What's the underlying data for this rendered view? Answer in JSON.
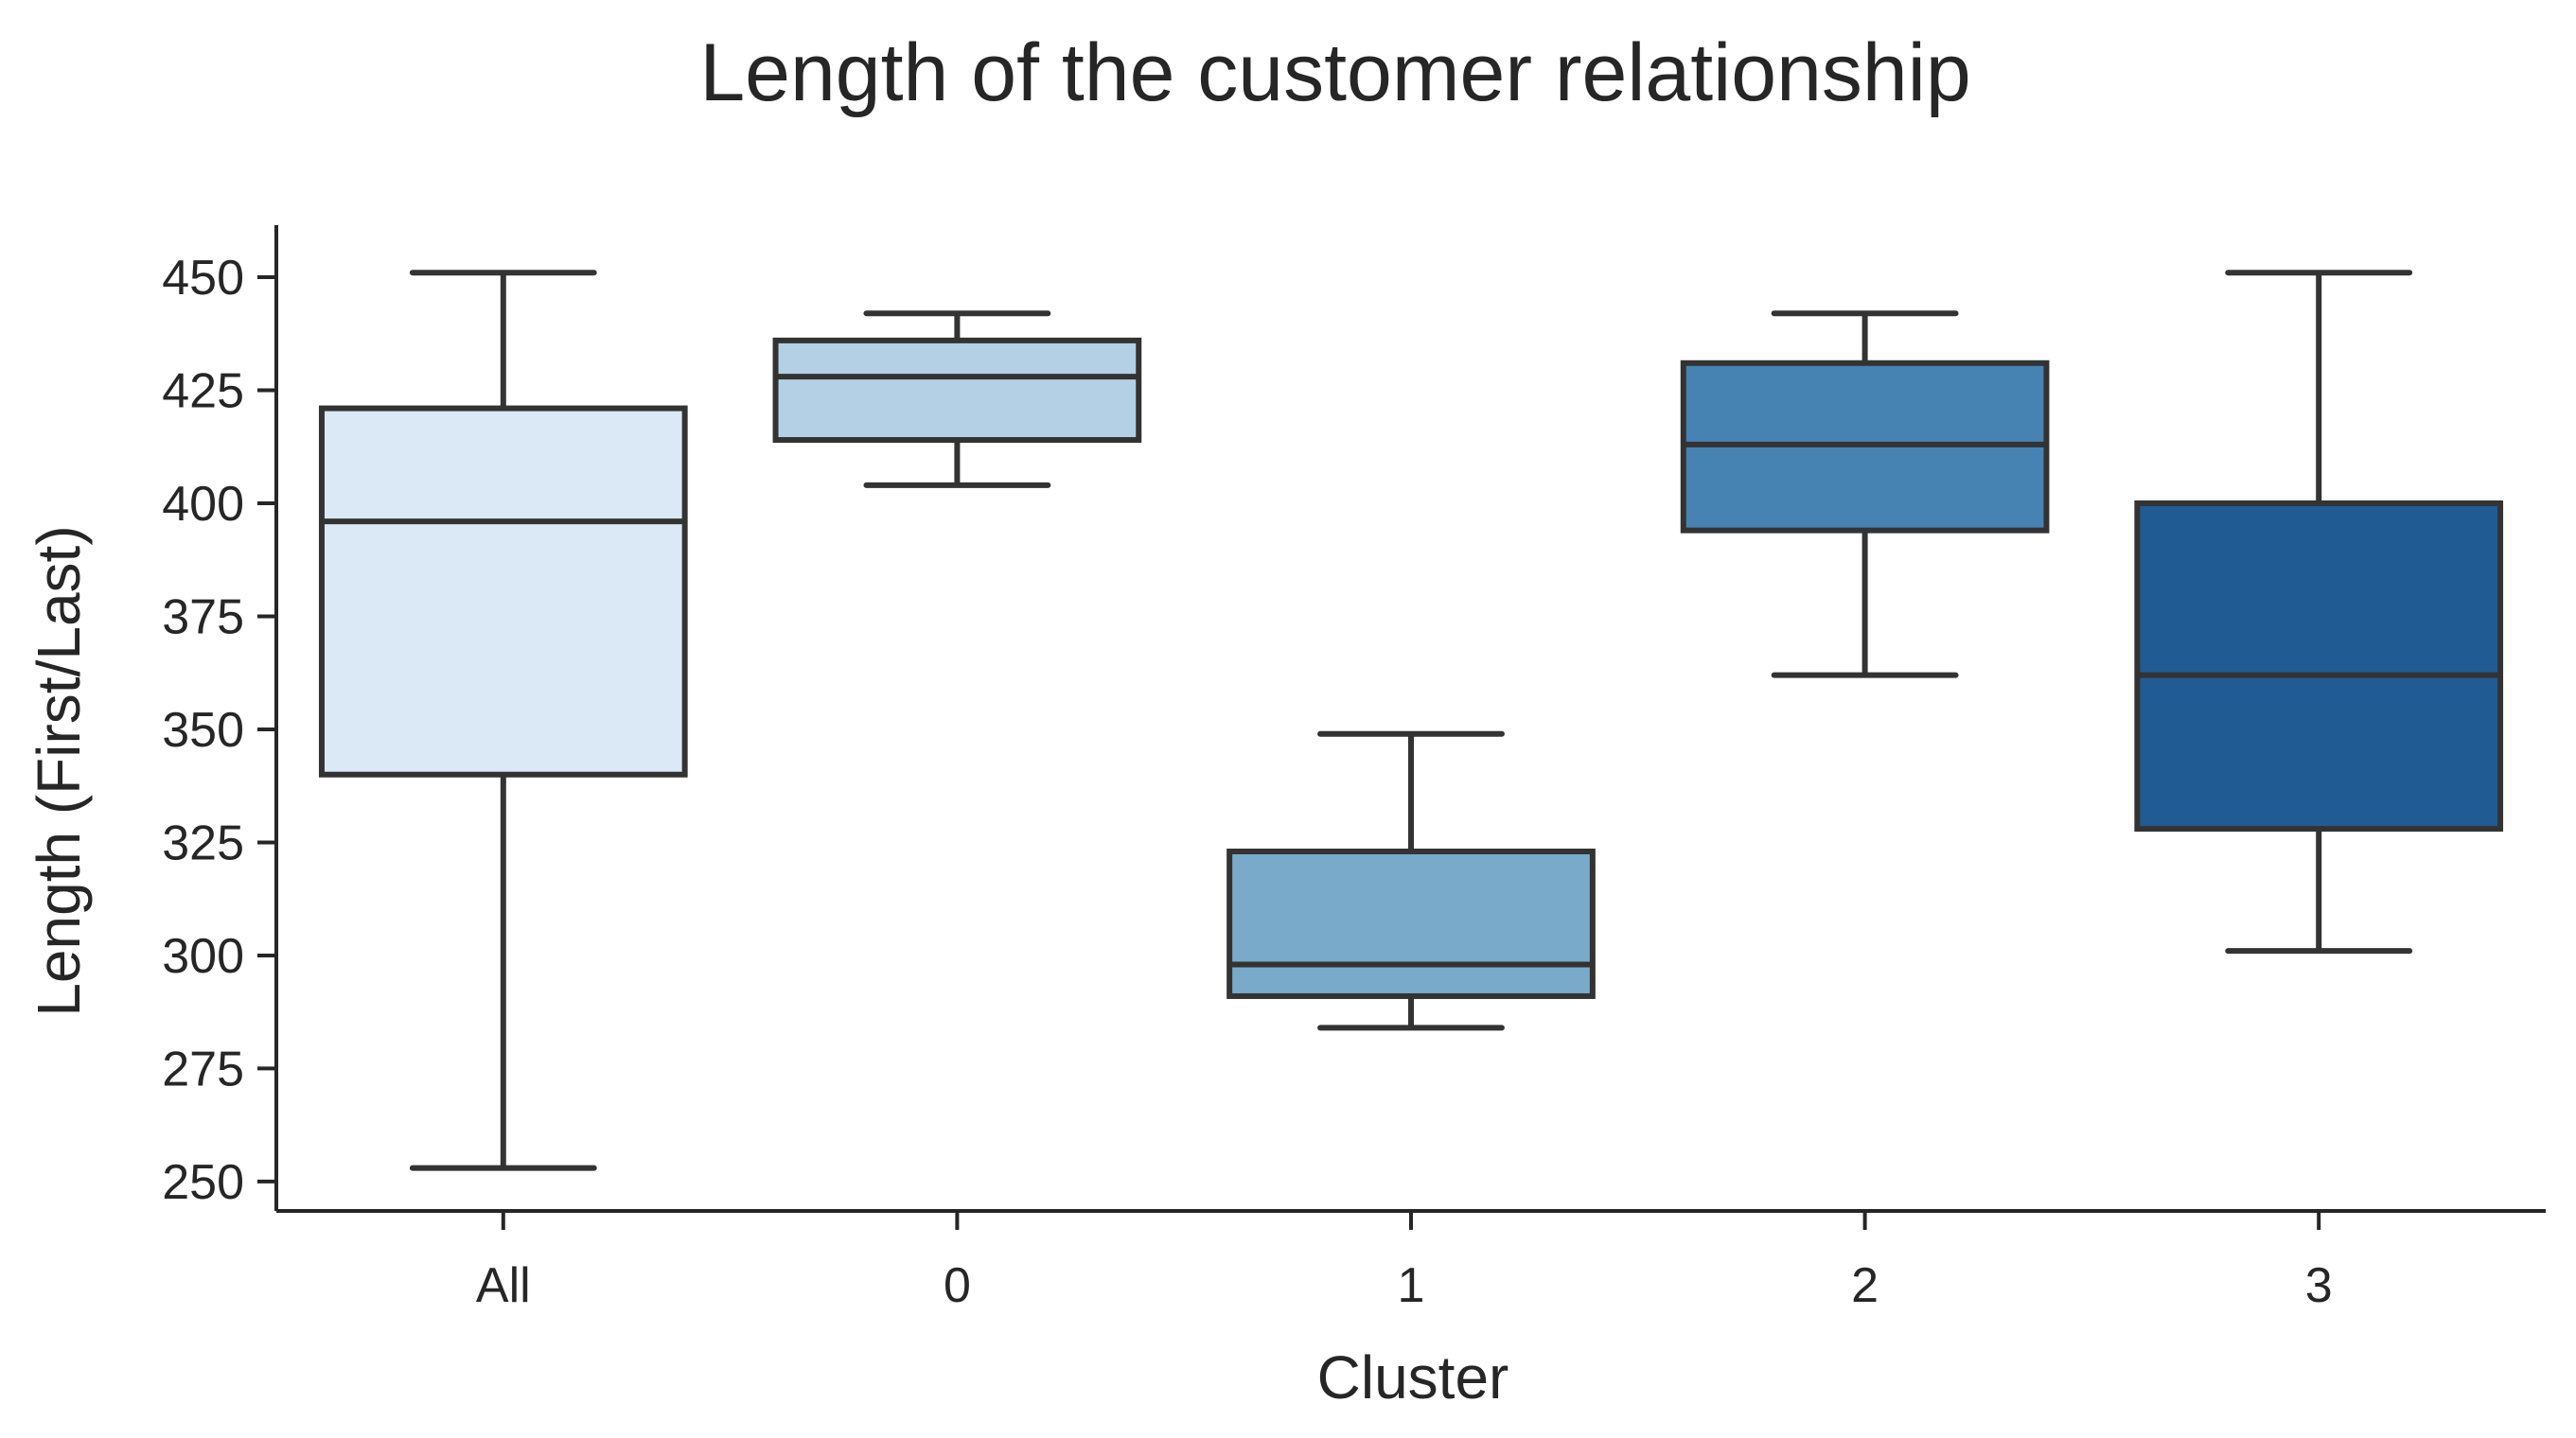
{
  "chart_data": {
    "type": "box",
    "title": "Length of the customer relationship",
    "xlabel": "Cluster",
    "ylabel": "Length (First/Last)",
    "categories": [
      "All",
      "0",
      "1",
      "2",
      "3"
    ],
    "ylim": [
      243.5,
      461.5
    ],
    "yticks": [
      250,
      275,
      300,
      325,
      350,
      375,
      400,
      425,
      450
    ],
    "grid": false,
    "boxes": [
      {
        "category": "All",
        "whisker_low": 253,
        "q1": 340,
        "median": 396,
        "q3": 421,
        "whisker_high": 451,
        "color": "#dbe8f5"
      },
      {
        "category": "0",
        "whisker_low": 404,
        "q1": 414,
        "median": 428,
        "q3": 436,
        "whisker_high": 442,
        "color": "#b4d0e4"
      },
      {
        "category": "1",
        "whisker_low": 284,
        "q1": 291,
        "median": 298,
        "q3": 323,
        "whisker_high": 349,
        "color": "#79aac9"
      },
      {
        "category": "2",
        "whisker_low": 362,
        "q1": 394,
        "median": 413,
        "q3": 431,
        "whisker_high": 442,
        "color": "#4683b2"
      },
      {
        "category": "3",
        "whisker_low": 301,
        "q1": 328,
        "median": 362,
        "q3": 400,
        "whisker_high": 451,
        "color": "#215b93"
      }
    ],
    "line_color": "#333333",
    "axis_color": "#262626"
  }
}
